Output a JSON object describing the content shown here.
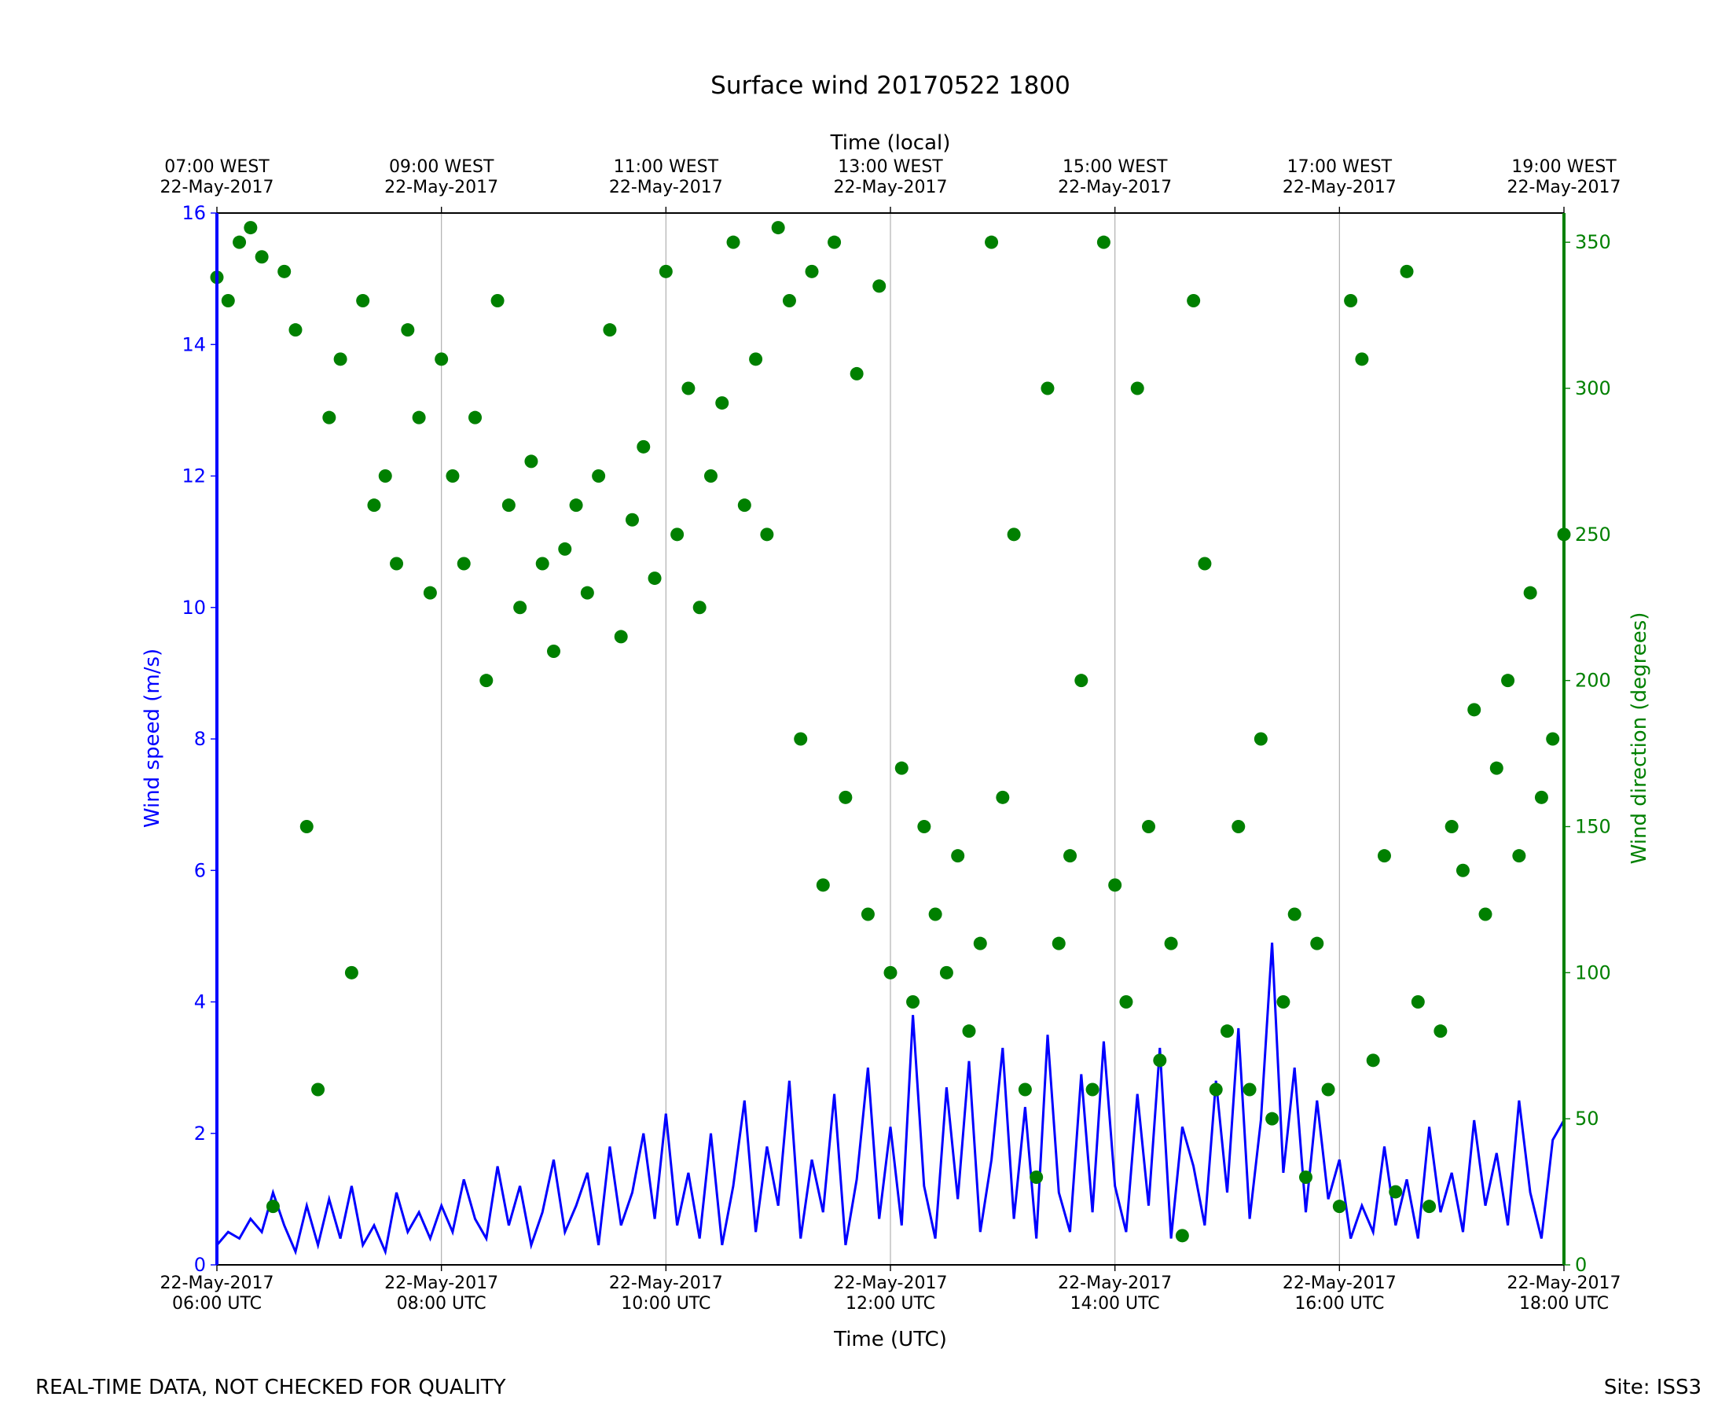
{
  "chart_data": {
    "type": "line",
    "title": "Surface wind 20170522 1800",
    "xlabel": "Time (UTC)",
    "x2label": "Time (local)",
    "ylabel": "Wind speed (m/s)",
    "y2label": "Wind direction (degrees)",
    "xlim": [
      6,
      18
    ],
    "xticks": [
      {
        "value": 6,
        "label": [
          "22-May-2017",
          "06:00 UTC"
        ]
      },
      {
        "value": 8,
        "label": [
          "22-May-2017",
          "08:00 UTC"
        ]
      },
      {
        "value": 10,
        "label": [
          "22-May-2017",
          "10:00 UTC"
        ]
      },
      {
        "value": 12,
        "label": [
          "22-May-2017",
          "12:00 UTC"
        ]
      },
      {
        "value": 14,
        "label": [
          "22-May-2017",
          "14:00 UTC"
        ]
      },
      {
        "value": 16,
        "label": [
          "22-May-2017",
          "16:00 UTC"
        ]
      },
      {
        "value": 18,
        "label": [
          "22-May-2017",
          "18:00 UTC"
        ]
      }
    ],
    "x2lim": [
      7,
      19
    ],
    "x2ticks": [
      {
        "value": 7,
        "label": [
          "07:00 WEST",
          "22-May-2017"
        ]
      },
      {
        "value": 9,
        "label": [
          "09:00 WEST",
          "22-May-2017"
        ]
      },
      {
        "value": 11,
        "label": [
          "11:00 WEST",
          "22-May-2017"
        ]
      },
      {
        "value": 13,
        "label": [
          "13:00 WEST",
          "22-May-2017"
        ]
      },
      {
        "value": 15,
        "label": [
          "15:00 WEST",
          "22-May-2017"
        ]
      },
      {
        "value": 17,
        "label": [
          "17:00 WEST",
          "22-May-2017"
        ]
      },
      {
        "value": 19,
        "label": [
          "19:00 WEST",
          "22-May-2017"
        ]
      }
    ],
    "ylim": [
      0,
      16
    ],
    "yticks": [
      0,
      2,
      4,
      6,
      8,
      10,
      12,
      14,
      16
    ],
    "y2lim": [
      0,
      360
    ],
    "y2ticks": [
      0,
      50,
      100,
      150,
      200,
      250,
      300,
      350
    ],
    "grid": true,
    "x": [
      6.0,
      6.1,
      6.2,
      6.3,
      6.4,
      6.5,
      6.6,
      6.7,
      6.8,
      6.9,
      7.0,
      7.1,
      7.2,
      7.3,
      7.4,
      7.5,
      7.6,
      7.7,
      7.8,
      7.9,
      8.0,
      8.1,
      8.2,
      8.3,
      8.4,
      8.5,
      8.6,
      8.7,
      8.8,
      8.9,
      9.0,
      9.1,
      9.2,
      9.3,
      9.4,
      9.5,
      9.6,
      9.7,
      9.8,
      9.9,
      10.0,
      10.1,
      10.2,
      10.3,
      10.4,
      10.5,
      10.6,
      10.7,
      10.8,
      10.9,
      11.0,
      11.1,
      11.2,
      11.3,
      11.4,
      11.5,
      11.6,
      11.7,
      11.8,
      11.9,
      12.0,
      12.1,
      12.2,
      12.3,
      12.4,
      12.5,
      12.6,
      12.7,
      12.8,
      12.9,
      13.0,
      13.1,
      13.2,
      13.3,
      13.4,
      13.5,
      13.6,
      13.7,
      13.8,
      13.9,
      14.0,
      14.1,
      14.2,
      14.3,
      14.4,
      14.5,
      14.6,
      14.7,
      14.8,
      14.9,
      15.0,
      15.1,
      15.2,
      15.3,
      15.4,
      15.5,
      15.6,
      15.7,
      15.8,
      15.9,
      16.0,
      16.1,
      16.2,
      16.3,
      16.4,
      16.5,
      16.6,
      16.7,
      16.8,
      16.9,
      17.0,
      17.1,
      17.2,
      17.3,
      17.4,
      17.5,
      17.6,
      17.7,
      17.8,
      17.9,
      18.0
    ],
    "series": [
      {
        "type": "line",
        "color": "#0000ff",
        "values": [
          0.3,
          0.5,
          0.4,
          0.7,
          0.5,
          1.1,
          0.6,
          0.2,
          0.9,
          0.3,
          1.0,
          0.4,
          1.2,
          0.3,
          0.6,
          0.2,
          1.1,
          0.5,
          0.8,
          0.4,
          0.9,
          0.5,
          1.3,
          0.7,
          0.4,
          1.5,
          0.6,
          1.2,
          0.3,
          0.8,
          1.6,
          0.5,
          0.9,
          1.4,
          0.3,
          1.8,
          0.6,
          1.1,
          2.0,
          0.7,
          2.3,
          0.6,
          1.4,
          0.4,
          2.0,
          0.3,
          1.2,
          2.5,
          0.5,
          1.8,
          0.9,
          2.8,
          0.4,
          1.6,
          0.8,
          2.6,
          0.3,
          1.3,
          3.0,
          0.7,
          2.1,
          0.6,
          3.8,
          1.2,
          0.4,
          2.7,
          1.0,
          3.1,
          0.5,
          1.6,
          3.3,
          0.7,
          2.4,
          0.4,
          3.5,
          1.1,
          0.5,
          2.9,
          0.8,
          3.4,
          1.2,
          0.5,
          2.6,
          0.9,
          3.3,
          0.4,
          2.1,
          1.5,
          0.6,
          2.8,
          1.1,
          3.6,
          0.7,
          2.2,
          4.9,
          1.4,
          3.0,
          0.8,
          2.5,
          1.0,
          1.6,
          0.4,
          0.9,
          0.5,
          1.8,
          0.6,
          1.3,
          0.4,
          2.1,
          0.8,
          1.4,
          0.5,
          2.2,
          0.9,
          1.7,
          0.6,
          2.5,
          1.1,
          0.4,
          1.9,
          2.2
        ]
      },
      {
        "type": "scatter",
        "axis": "y2",
        "color": "#008000",
        "values": [
          338,
          330,
          350,
          355,
          345,
          20,
          340,
          320,
          150,
          60,
          290,
          310,
          100,
          330,
          260,
          270,
          240,
          320,
          290,
          230,
          310,
          270,
          240,
          290,
          200,
          330,
          260,
          225,
          275,
          240,
          210,
          245,
          260,
          230,
          270,
          320,
          215,
          255,
          280,
          235,
          340,
          250,
          300,
          225,
          270,
          295,
          350,
          260,
          310,
          250,
          355,
          330,
          180,
          340,
          130,
          350,
          160,
          305,
          120,
          335,
          100,
          170,
          90,
          150,
          120,
          100,
          140,
          80,
          110,
          350,
          160,
          250,
          60,
          30,
          300,
          110,
          140,
          200,
          60,
          350,
          130,
          90,
          300,
          150,
          70,
          110,
          10,
          330,
          240,
          60,
          80,
          150,
          60,
          180,
          50,
          90,
          120,
          30,
          110,
          60,
          20,
          330,
          310,
          70,
          140,
          25,
          340,
          90,
          20,
          80,
          150,
          135,
          190,
          120,
          170,
          200,
          140,
          230,
          160,
          180,
          250
        ]
      }
    ]
  },
  "footer": {
    "note": "REAL-TIME DATA, NOT CHECKED FOR QUALITY",
    "site": "Site: ISS3"
  }
}
